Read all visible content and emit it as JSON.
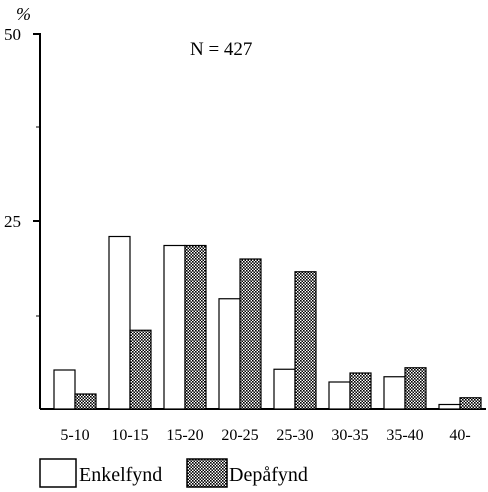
{
  "chart_data": {
    "type": "bar",
    "ylabel": "%",
    "annotation": "N = 427",
    "ylim": [
      0,
      50
    ],
    "yticks": [
      50,
      25
    ],
    "categories": [
      "5-10",
      "10-15",
      "15-20",
      "20-25",
      "25-30",
      "30-35",
      "35-40",
      "40-"
    ],
    "series": [
      {
        "name": "Enkelfynd",
        "fill": "#ffffff",
        "values": [
          5.2,
          23.0,
          21.8,
          14.7,
          5.3,
          3.6,
          4.3,
          0.6
        ]
      },
      {
        "name": "Depåfynd",
        "fill": "pattern",
        "values": [
          2.0,
          10.5,
          21.8,
          20.0,
          18.3,
          4.8,
          5.5,
          1.5
        ]
      }
    ],
    "legend_position": "bottom",
    "grid": false
  }
}
